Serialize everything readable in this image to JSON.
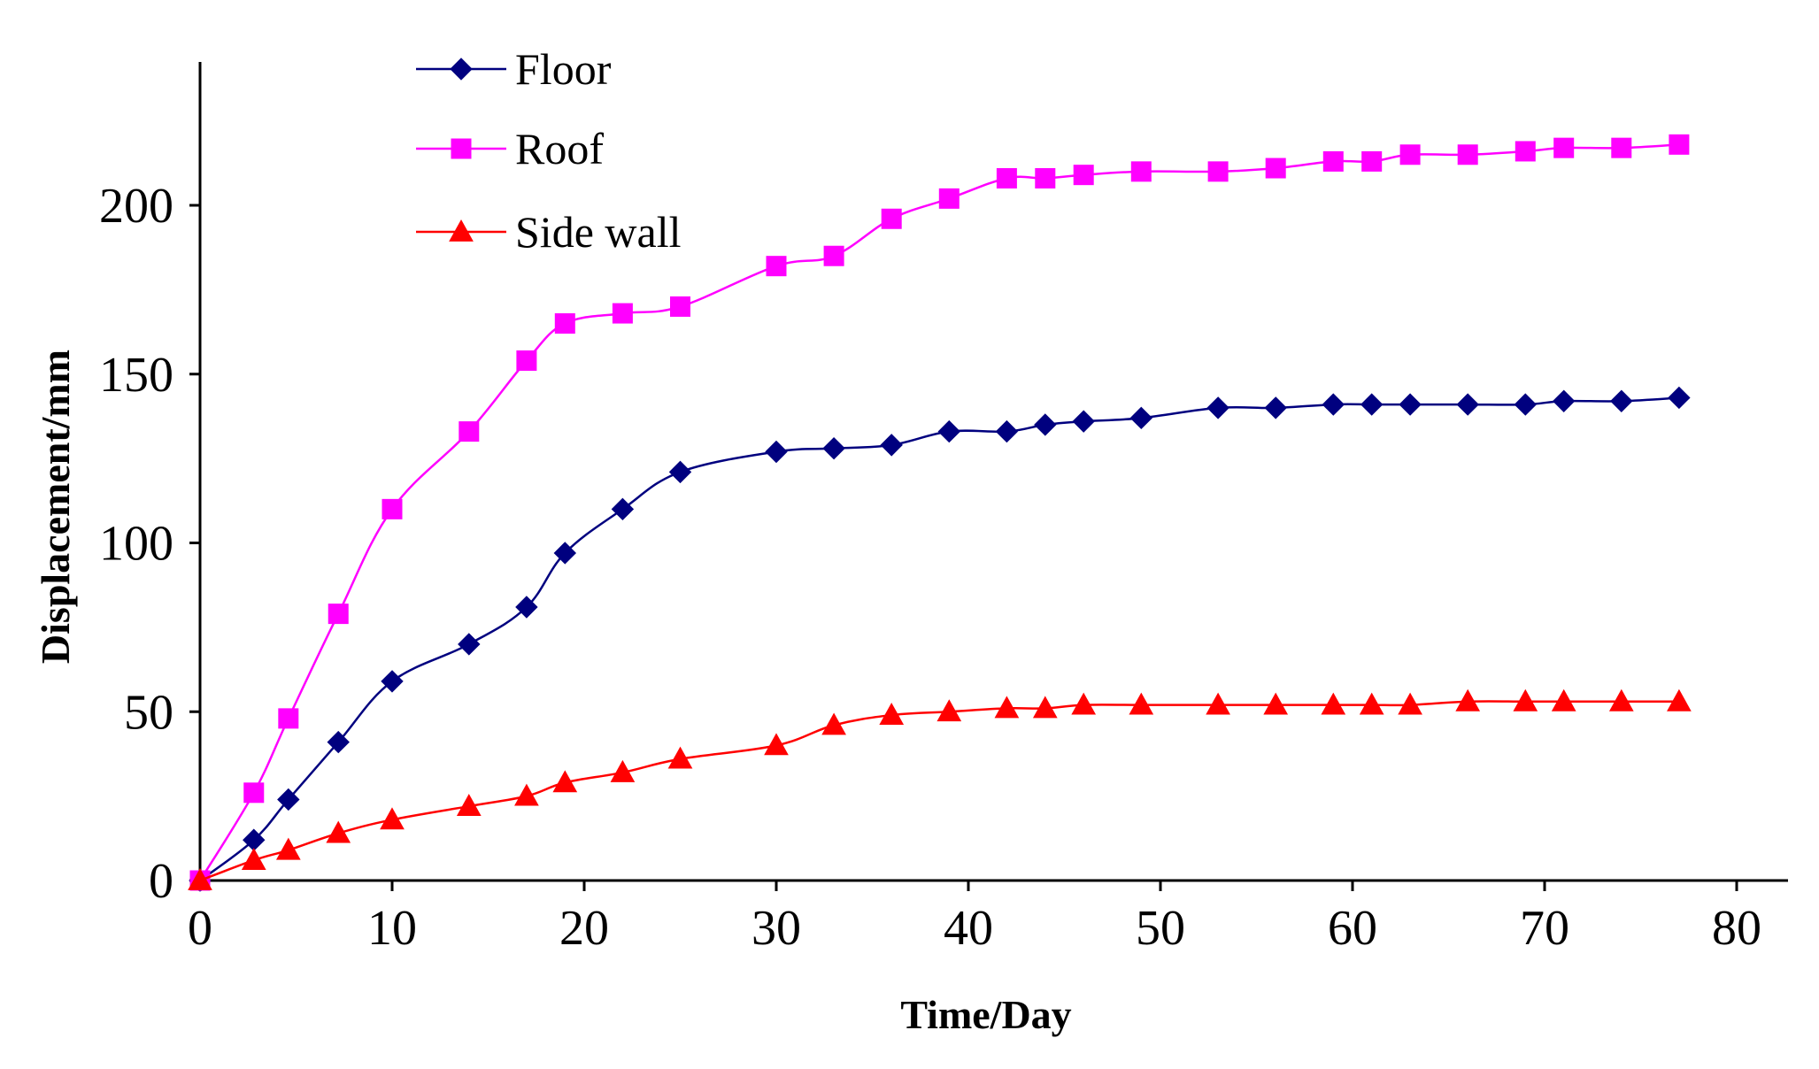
{
  "chart_data": {
    "type": "line",
    "xlabel": "Time/Day",
    "ylabel": "Displacement/mm",
    "xlim": [
      0,
      80
    ],
    "ylim": [
      0,
      230
    ],
    "xticks": [
      "0",
      "10",
      "20",
      "30",
      "40",
      "50",
      "60",
      "70",
      "80"
    ],
    "yticks": [
      "0",
      "50",
      "100",
      "150",
      "200"
    ],
    "grid": false,
    "legend_position": "top-left",
    "x": [
      0,
      2.8,
      4.6,
      7.2,
      10,
      14,
      17,
      19,
      22,
      25,
      30,
      33,
      36,
      39,
      42,
      44,
      46,
      49,
      53,
      56,
      59,
      61,
      63,
      66,
      69,
      71,
      74,
      77
    ],
    "series": [
      {
        "name": "Floor",
        "color": "#00007f",
        "marker": "diamond",
        "values": [
          0,
          12,
          24,
          41,
          59,
          70,
          81,
          97,
          110,
          121,
          127,
          128,
          129,
          133,
          133,
          135,
          136,
          137,
          140,
          140,
          141,
          141,
          141,
          141,
          141,
          142,
          142,
          143
        ]
      },
      {
        "name": "Roof",
        "color": "#ff00ff",
        "marker": "square",
        "values": [
          0,
          26,
          48,
          79,
          110,
          133,
          154,
          165,
          168,
          170,
          182,
          185,
          196,
          202,
          208,
          208,
          209,
          210,
          210,
          211,
          213,
          213,
          215,
          215,
          216,
          217,
          217,
          218
        ]
      },
      {
        "name": "Side wall",
        "color": "#ff0000",
        "marker": "triangle",
        "values": [
          0,
          6,
          9,
          14,
          18,
          22,
          25,
          29,
          32,
          36,
          40,
          46,
          49,
          50,
          51,
          51,
          52,
          52,
          52,
          52,
          52,
          52,
          52,
          53,
          53,
          53,
          53,
          53
        ]
      }
    ]
  }
}
